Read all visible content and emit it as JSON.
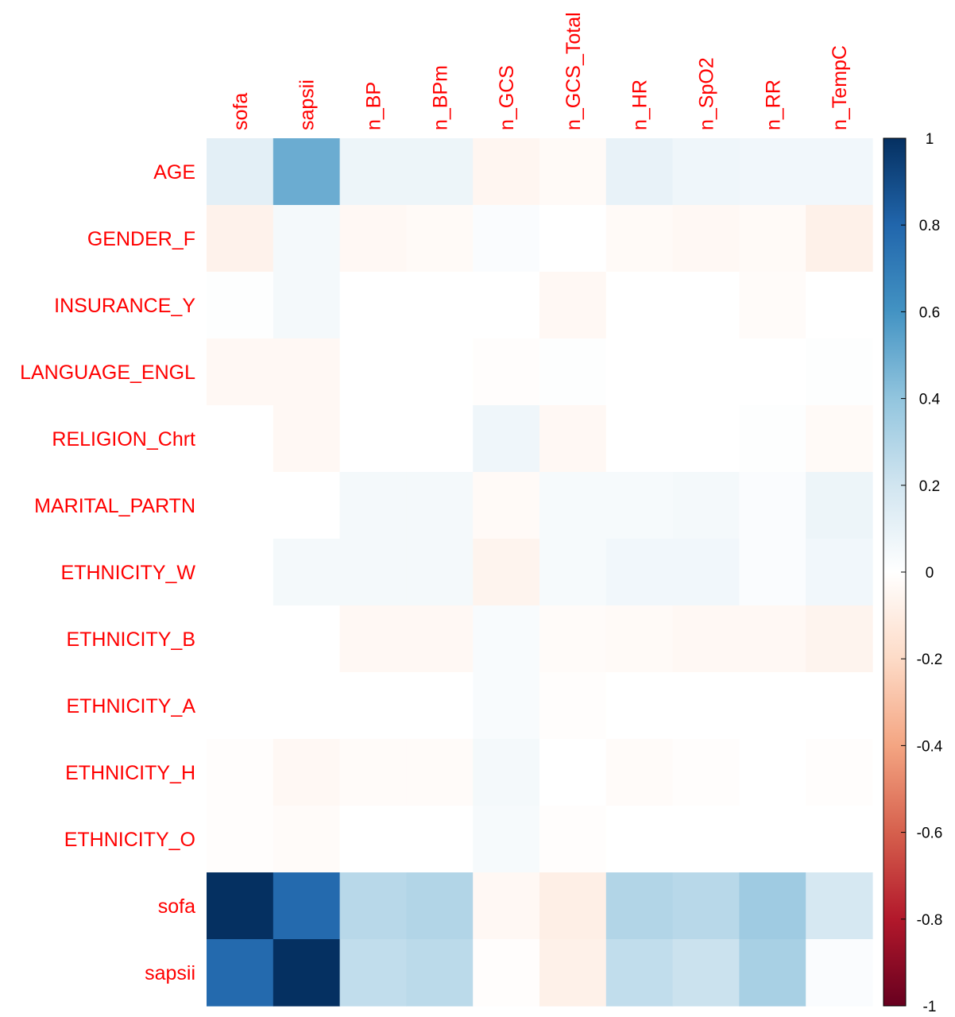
{
  "chart_data": {
    "type": "heatmap",
    "title": "",
    "xlabel": "",
    "ylabel": "",
    "columns": [
      "sofa",
      "sapsii",
      "n_BP",
      "n_BPm",
      "n_GCS",
      "n_GCS_Total",
      "n_HR",
      "n_SpO2",
      "n_RR",
      "n_TempC"
    ],
    "rows": [
      "AGE",
      "GENDER_F",
      "INSURANCE_Y",
      "LANGUAGE_ENGL",
      "RELIGION_Chrt",
      "MARITAL_PARTN",
      "ETHNICITY_W",
      "ETHNICITY_B",
      "ETHNICITY_A",
      "ETHNICITY_H",
      "ETHNICITY_O",
      "sofa",
      "sapsii"
    ],
    "values": [
      [
        0.12,
        0.5,
        0.08,
        0.08,
        -0.05,
        -0.03,
        0.1,
        0.07,
        0.06,
        0.06
      ],
      [
        -0.07,
        0.05,
        -0.04,
        -0.03,
        0.02,
        0.0,
        -0.03,
        -0.04,
        -0.03,
        -0.08
      ],
      [
        0.01,
        0.05,
        0.0,
        0.0,
        0.0,
        -0.04,
        0.0,
        0.0,
        -0.02,
        0.0
      ],
      [
        -0.04,
        -0.04,
        0.0,
        0.0,
        -0.01,
        0.01,
        0.0,
        0.0,
        0.0,
        0.01
      ],
      [
        0.0,
        -0.04,
        0.0,
        0.0,
        0.07,
        -0.04,
        0.0,
        0.0,
        0.01,
        -0.03
      ],
      [
        0.0,
        0.0,
        0.05,
        0.05,
        -0.03,
        0.04,
        0.04,
        0.05,
        0.02,
        0.08
      ],
      [
        0.0,
        0.05,
        0.05,
        0.05,
        -0.06,
        0.04,
        0.06,
        0.06,
        0.02,
        0.06
      ],
      [
        0.0,
        0.0,
        -0.04,
        -0.04,
        0.03,
        -0.02,
        -0.03,
        -0.04,
        -0.04,
        -0.06
      ],
      [
        0.0,
        0.0,
        0.0,
        0.0,
        0.03,
        -0.01,
        0.0,
        0.0,
        0.0,
        0.0
      ],
      [
        -0.01,
        -0.04,
        -0.02,
        -0.02,
        0.05,
        0.0,
        -0.02,
        -0.01,
        0.0,
        -0.01
      ],
      [
        -0.01,
        -0.02,
        0.0,
        0.0,
        0.04,
        -0.01,
        0.0,
        0.0,
        0.0,
        0.0
      ],
      [
        1.0,
        0.78,
        0.28,
        0.3,
        -0.04,
        -0.09,
        0.3,
        0.28,
        0.36,
        0.18
      ],
      [
        0.78,
        1.0,
        0.25,
        0.27,
        -0.01,
        -0.08,
        0.25,
        0.22,
        0.33,
        0.02
      ]
    ],
    "scale": {
      "min": -1,
      "max": 1
    },
    "colorbar_ticks": [
      "1",
      "0.8",
      "0.6",
      "0.4",
      "0.2",
      "0",
      "-0.2",
      "-0.4",
      "-0.6",
      "-0.8",
      "-1"
    ],
    "colorbar_tick_values": [
      1,
      0.8,
      0.6,
      0.4,
      0.2,
      0,
      -0.2,
      -0.4,
      -0.6,
      -0.8,
      -1
    ],
    "colormap": [
      "#67001f",
      "#b2182b",
      "#d6604d",
      "#f4a582",
      "#fddbc7",
      "#ffffff",
      "#d1e5f0",
      "#92c5de",
      "#4393c3",
      "#2166ac",
      "#053061"
    ],
    "label_color": "#ff0000",
    "legend_placement": "right",
    "grid": false
  }
}
